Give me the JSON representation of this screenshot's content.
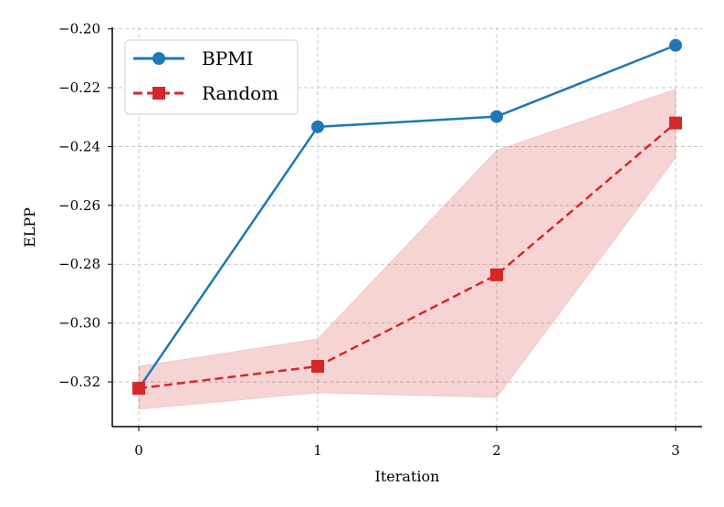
{
  "chart_data": {
    "type": "line",
    "title": "",
    "xlabel": "Iteration",
    "ylabel": "ELPP",
    "x": [
      0,
      1,
      2,
      3
    ],
    "xlim": [
      -0.148,
      3.148
    ],
    "ylim": [
      -0.3352,
      -0.1995
    ],
    "xticks": [
      "0",
      "1",
      "2",
      "3"
    ],
    "yticks": [
      -0.32,
      -0.3,
      -0.28,
      -0.26,
      -0.24,
      -0.22,
      -0.2
    ],
    "ytick_labels": [
      "−0.32",
      "−0.30",
      "−0.28",
      "−0.26",
      "−0.24",
      "−0.22",
      "−0.20"
    ],
    "grid": true,
    "legend_placement": "top-left",
    "series": [
      {
        "name": "BPMI",
        "values": [
          -0.3222,
          -0.2333,
          -0.2298,
          -0.2056
        ],
        "color": "#1f77b4",
        "marker": "circle",
        "linestyle": "solid"
      },
      {
        "name": "Random",
        "values": [
          -0.3222,
          -0.3147,
          -0.2836,
          -0.232
        ],
        "color": "#d62728",
        "marker": "square",
        "linestyle": "dashed",
        "band_upper": [
          -0.3147,
          -0.3054,
          -0.2413,
          -0.2205
        ],
        "band_lower": [
          -0.3293,
          -0.3237,
          -0.3253,
          -0.2438
        ]
      }
    ]
  }
}
